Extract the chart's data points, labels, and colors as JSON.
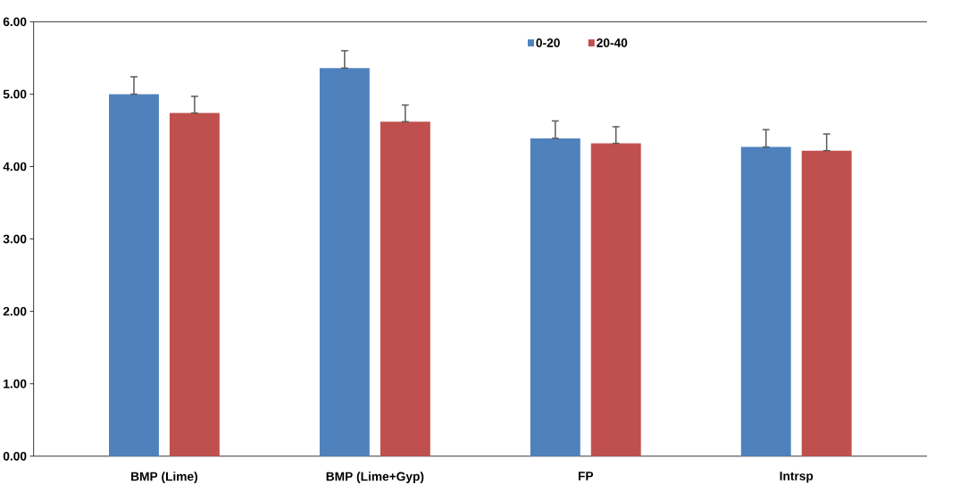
{
  "chart_data": {
    "type": "bar",
    "categories": [
      "BMP (Lime)",
      "BMP (Lime+Gyp)",
      "FP",
      "Intrsp"
    ],
    "series": [
      {
        "name": "0-20",
        "color": "#4f81bd",
        "values": [
          5.0,
          5.36,
          4.39,
          4.27
        ],
        "errors": [
          [
            5.0,
            5.24
          ],
          [
            5.36,
            5.6
          ],
          [
            4.39,
            4.63
          ],
          [
            4.27,
            4.51
          ]
        ]
      },
      {
        "name": "20-40",
        "color": "#c0504d",
        "values": [
          4.74,
          4.62,
          4.32,
          4.22
        ],
        "errors": [
          [
            4.74,
            4.97
          ],
          [
            4.62,
            4.85
          ],
          [
            4.32,
            4.55
          ],
          [
            4.22,
            4.45
          ]
        ]
      }
    ],
    "ylim": [
      0,
      6
    ],
    "yticks": [
      {
        "value": 0,
        "label": "0.00"
      },
      {
        "value": 1,
        "label": "1.00"
      },
      {
        "value": 2,
        "label": "2.00"
      },
      {
        "value": 3,
        "label": "3.00"
      },
      {
        "value": 4,
        "label": "4.00"
      },
      {
        "value": 5,
        "label": "5.00"
      },
      {
        "value": 6,
        "label": "6.00"
      }
    ],
    "legend": "top right"
  }
}
